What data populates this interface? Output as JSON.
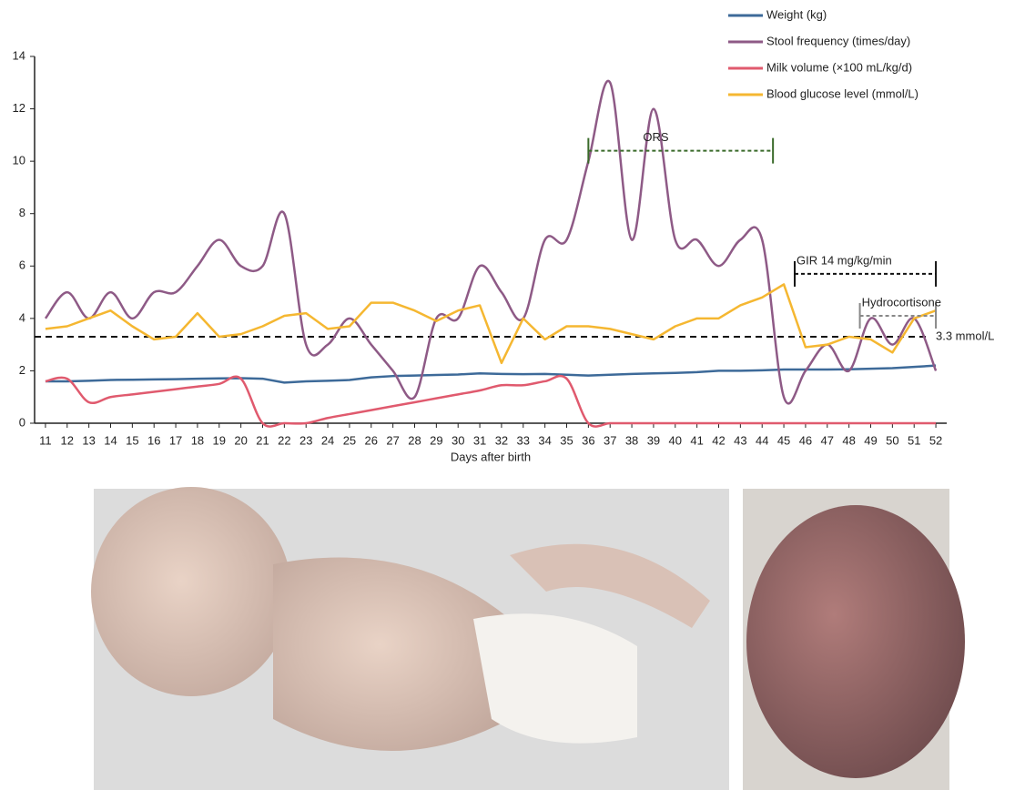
{
  "chart_data": {
    "type": "line",
    "x_label": "Days after birth",
    "x": [
      11,
      12,
      13,
      14,
      15,
      16,
      17,
      18,
      19,
      20,
      21,
      22,
      23,
      24,
      25,
      26,
      27,
      28,
      29,
      30,
      31,
      32,
      33,
      34,
      35,
      36,
      37,
      38,
      39,
      40,
      41,
      42,
      43,
      44,
      45,
      46,
      47,
      48,
      49,
      50,
      51,
      52
    ],
    "xlim": [
      10.5,
      52.5
    ],
    "xticks": [
      11,
      12,
      13,
      14,
      15,
      16,
      17,
      18,
      19,
      20,
      21,
      22,
      23,
      24,
      25,
      26,
      27,
      28,
      29,
      30,
      31,
      32,
      33,
      34,
      35,
      36,
      37,
      38,
      39,
      40,
      41,
      42,
      43,
      44,
      45,
      46,
      47,
      48,
      49,
      50,
      51,
      52
    ],
    "ylim": [
      0,
      14
    ],
    "yticks": [
      0,
      2,
      4,
      6,
      8,
      10,
      12,
      14
    ],
    "series": [
      {
        "name": "Weight (kg)",
        "color": "#3d6a99",
        "smooth": false,
        "values": [
          1.6,
          1.6,
          1.62,
          1.65,
          1.66,
          1.67,
          1.68,
          1.7,
          1.71,
          1.72,
          1.7,
          1.55,
          1.6,
          1.62,
          1.65,
          1.75,
          1.8,
          1.82,
          1.84,
          1.86,
          1.9,
          1.88,
          1.87,
          1.88,
          1.85,
          1.82,
          1.85,
          1.88,
          1.9,
          1.92,
          1.95,
          2.0,
          2.0,
          2.02,
          2.05,
          2.05,
          2.05,
          2.06,
          2.08,
          2.1,
          2.15,
          2.2
        ]
      },
      {
        "name": "Stool frequency (times/day)",
        "color": "#8e5a86",
        "smooth": true,
        "values": [
          4,
          5,
          4,
          5,
          4,
          5,
          5,
          6,
          7,
          6,
          6,
          8,
          3,
          3,
          4,
          3,
          2,
          1,
          4,
          4,
          6,
          5,
          4,
          7,
          7,
          10,
          13,
          7,
          12,
          7,
          7,
          6,
          7,
          7,
          1,
          2,
          3,
          2,
          4,
          3,
          4,
          2
        ]
      },
      {
        "name": "Milk volume (×100 mL/kg/d)",
        "color": "#e05a6e",
        "smooth": true,
        "values": [
          1.6,
          1.7,
          0.8,
          1.0,
          1.1,
          1.2,
          1.3,
          1.4,
          1.5,
          1.7,
          0,
          0,
          0,
          0.2,
          0.35,
          0.5,
          0.65,
          0.8,
          0.95,
          1.1,
          1.25,
          1.45,
          1.45,
          1.6,
          1.7,
          0,
          0,
          0,
          0,
          0,
          0,
          0,
          0,
          0,
          0,
          0,
          0,
          0,
          0,
          0,
          0,
          0
        ]
      },
      {
        "name": "Blood glucose level (mmol/L)",
        "color": "#f5b731",
        "smooth": false,
        "values": [
          3.6,
          3.7,
          4.0,
          4.3,
          3.7,
          3.2,
          3.3,
          4.2,
          3.3,
          3.4,
          3.7,
          4.1,
          4.2,
          3.6,
          3.7,
          4.6,
          4.6,
          4.3,
          3.9,
          4.3,
          4.5,
          2.3,
          4.0,
          3.2,
          3.7,
          3.7,
          3.6,
          3.4,
          3.2,
          3.7,
          4.0,
          4.0,
          4.5,
          4.8,
          5.3,
          2.9,
          3.0,
          3.3,
          3.2,
          2.7,
          4.0,
          4.3
        ]
      }
    ],
    "reference_lines": [
      {
        "value": 3.3,
        "label": "3.3 mmol/L",
        "color": "#111"
      }
    ],
    "annotations": [
      {
        "text": "ORS",
        "x": [
          36,
          44.5
        ],
        "y": 10.4,
        "color": "#3a6a2a"
      },
      {
        "text": "GIR 14 mg/kg/min",
        "x": [
          45.5,
          52
        ],
        "y": 5.7,
        "color": "#111"
      },
      {
        "text": "Hydrocortisone",
        "x": [
          48.5,
          52
        ],
        "y": 4.1,
        "color": "#888"
      }
    ],
    "legend": "top-right"
  }
}
